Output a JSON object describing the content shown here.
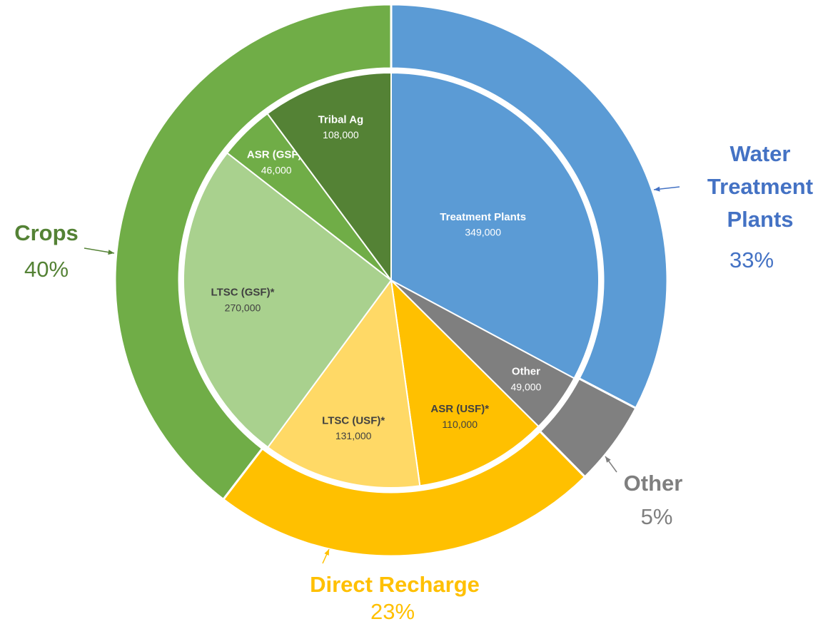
{
  "chart_data": {
    "type": "sunburst",
    "inner": {
      "categories": [
        "Treatment Plants",
        "Other",
        "ASR (USF)*",
        "LTSC (USF)*",
        "LTSC (GSF)*",
        "ASR (GSF)*",
        "Tribal Ag"
      ],
      "values": [
        349000,
        49000,
        110000,
        131000,
        270000,
        46000,
        108000
      ],
      "value_labels": [
        "349,000",
        "49,000",
        "110,000",
        "131,000",
        "270,000",
        "46,000",
        "108,000"
      ],
      "colors": [
        "#5b9bd5",
        "#7f7f7f",
        "#ffc000",
        "#ffd966",
        "#a9d18e",
        "#70ad47",
        "#548235"
      ],
      "label_colors": [
        "#ffffff",
        "#ffffff",
        "#404040",
        "#404040",
        "#404040",
        "#ffffff",
        "#ffffff"
      ]
    },
    "outer": {
      "categories": [
        "Water Treatment Plants",
        "Other",
        "Direct Recharge",
        "Crops"
      ],
      "values": [
        33,
        5,
        23,
        40
      ],
      "value_labels": [
        "33%",
        "5%",
        "23%",
        "40%"
      ],
      "colors": [
        "#5b9bd5",
        "#808080",
        "#ffc000",
        "#70ad47"
      ],
      "label_colors": [
        "#4472c4",
        "#7f7f7f",
        "#ffc000",
        "#548235"
      ]
    }
  }
}
